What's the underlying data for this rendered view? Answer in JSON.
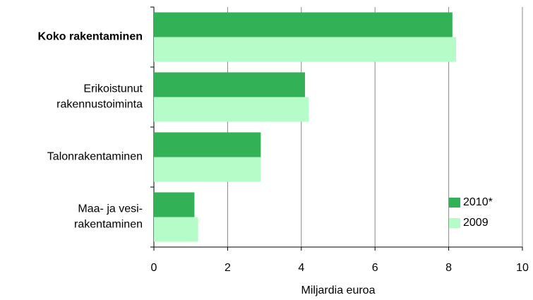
{
  "chart_data": {
    "type": "barh",
    "categories": [
      "Koko rakentaminen",
      "Erikoistunut\nrakennustoiminta",
      "Talonrakentaminen",
      "Maa- ja vesi-\nrakentaminen"
    ],
    "series": [
      {
        "name": "2010*",
        "color": "#33b156",
        "values": [
          8.1,
          4.1,
          2.9,
          1.1
        ]
      },
      {
        "name": "2009",
        "color": "#b6fcc8",
        "values": [
          8.2,
          4.2,
          2.9,
          1.2
        ]
      }
    ],
    "xlabel": "Miljardia euroa",
    "xlim": [
      0,
      10
    ],
    "xticks": [
      0,
      2,
      4,
      6,
      8,
      10
    ],
    "grid": true,
    "legend": "lower right"
  }
}
